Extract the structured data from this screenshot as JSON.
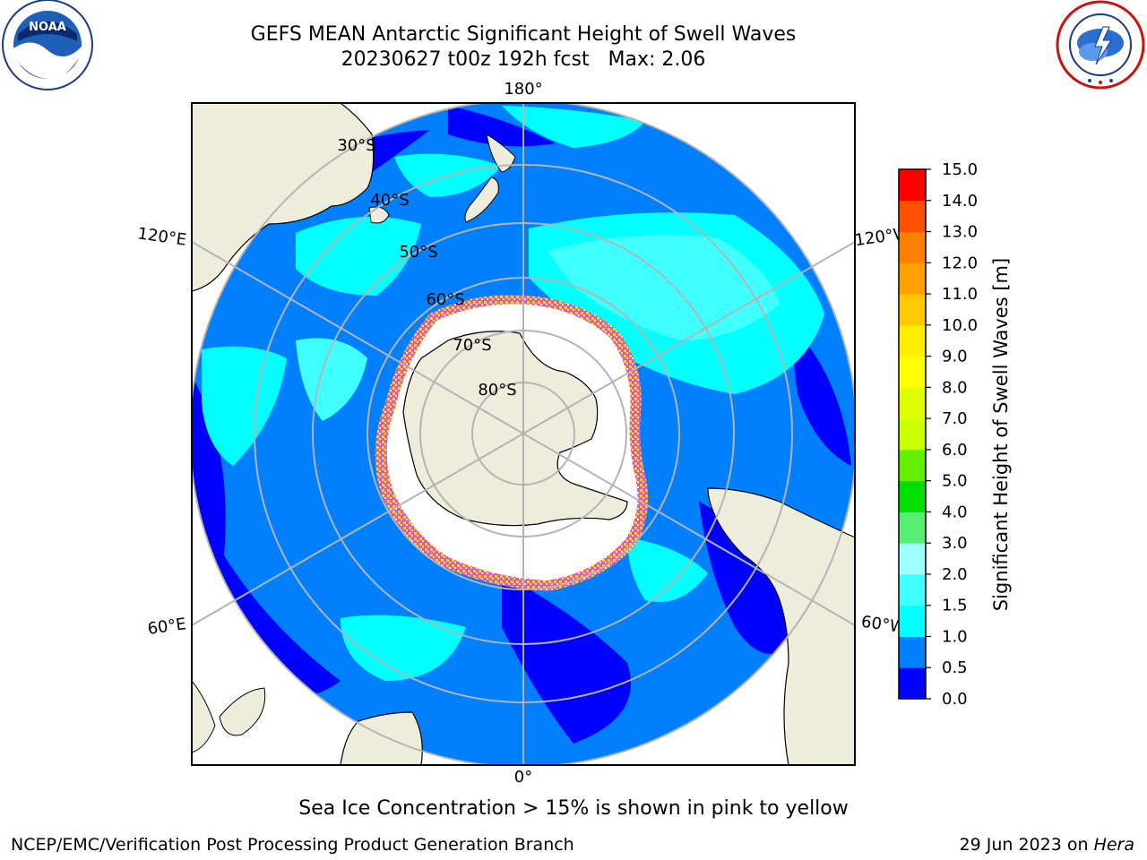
{
  "header": {
    "title": "GEFS MEAN Antarctic Significant Height of Swell Waves",
    "subtitle": "20230627 t00z 192h fcst   Max: 2.06"
  },
  "logos": {
    "left": {
      "icon": "noaa-logo",
      "text": "NOAA",
      "ring_text": "NATIONAL OCEANIC AND ATMOSPHERIC ADMINISTRATION · U.S. DEPARTMENT OF COMMERCE"
    },
    "right": {
      "icon": "nws-logo",
      "ring_text": "NATIONAL WEATHER SERVICE"
    }
  },
  "map": {
    "projection": "south-polar-stereographic",
    "longitude_labels": {
      "top": "180°",
      "bottom": "0°",
      "upper_left": "120°E",
      "upper_right": "120°W",
      "lower_left": "60°E",
      "lower_right": "60°W"
    },
    "latitude_labels": [
      "30°S",
      "40°S",
      "50°S",
      "60°S",
      "70°S",
      "80°S"
    ],
    "colors": {
      "land": "#eeeddc",
      "ice": "#ffffff",
      "ice_edge": [
        "#ff33cc",
        "#ffcc00"
      ],
      "grid": "#b4b4b4",
      "frame": "#000000"
    }
  },
  "colorbar": {
    "label": "Significant Height of Swell Waves [m]",
    "ticks": [
      "15.0",
      "14.0",
      "13.0",
      "12.0",
      "11.0",
      "10.0",
      "9.0",
      "8.0",
      "7.0",
      "6.0",
      "5.0",
      "4.0",
      "3.0",
      "2.0",
      "1.5",
      "1.0",
      "0.5",
      "0.0"
    ],
    "bands": [
      {
        "range": "0.0-0.5",
        "color": "#0000ff"
      },
      {
        "range": "0.5-1.0",
        "color": "#0080ff"
      },
      {
        "range": "1.0-1.5",
        "color": "#00ffff"
      },
      {
        "range": "1.5-2.0",
        "color": "#40ffff"
      },
      {
        "range": "2.0-3.0",
        "color": "#a0ffff"
      },
      {
        "range": "3.0-4.0",
        "color": "#55ee70"
      },
      {
        "range": "4.0-5.0",
        "color": "#00e000"
      },
      {
        "range": "5.0-6.0",
        "color": "#66ee00"
      },
      {
        "range": "6.0-7.0",
        "color": "#ccff00"
      },
      {
        "range": "7.0-8.0",
        "color": "#ddff00"
      },
      {
        "range": "8.0-9.0",
        "color": "#ffff00"
      },
      {
        "range": "9.0-10.0",
        "color": "#ffee00"
      },
      {
        "range": "10.0-11.0",
        "color": "#ffc800"
      },
      {
        "range": "11.0-12.0",
        "color": "#ffa000"
      },
      {
        "range": "12.0-13.0",
        "color": "#ff8000"
      },
      {
        "range": "13.0-14.0",
        "color": "#ff5000"
      },
      {
        "range": "14.0-15.0",
        "color": "#ff0000"
      }
    ]
  },
  "note": "Sea Ice Concentration > 15% is shown in pink to yellow",
  "footer": {
    "left": "NCEP/EMC/Verification Post Processing Product Generation Branch",
    "right_prefix": "29 Jun 2023 on ",
    "right_host": "Hera"
  }
}
